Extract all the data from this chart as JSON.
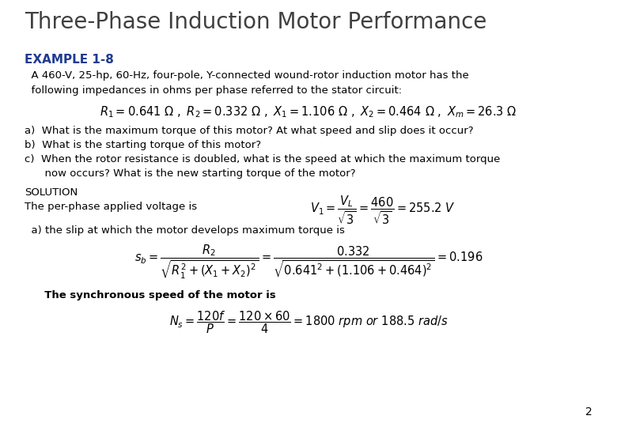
{
  "title": "Three-Phase Induction Motor Performance",
  "title_color": "#404040",
  "title_fontsize": 20,
  "example_label": "EXAMPLE 1-8",
  "example_color": "#1F3A8F",
  "example_fontsize": 11,
  "bg_color": "#FFFFFF",
  "page_number": "2",
  "desc1": "  A 460-V, 25-hp, 60-Hz, four-pole, Y-connected wound-rotor induction motor has the",
  "desc2": "  following impedances in ohms per phase referred to the stator circuit:",
  "qa": "a)  What is the maximum torque of this motor? At what speed and slip does it occur?",
  "qb": "b)  What is the starting torque of this motor?",
  "qc1": "c)  When the rotor resistance is doubled, what is the speed at which the maximum torque",
  "qc2": "      now occurs? What is the new starting torque of the motor?",
  "solution": "SOLUTION",
  "perphase_text": "The per-phase applied voltage is",
  "slip_text": "  a) the slip at which the motor develops maximum torque is",
  "sync_text": "  The synchronous speed of the motor is"
}
